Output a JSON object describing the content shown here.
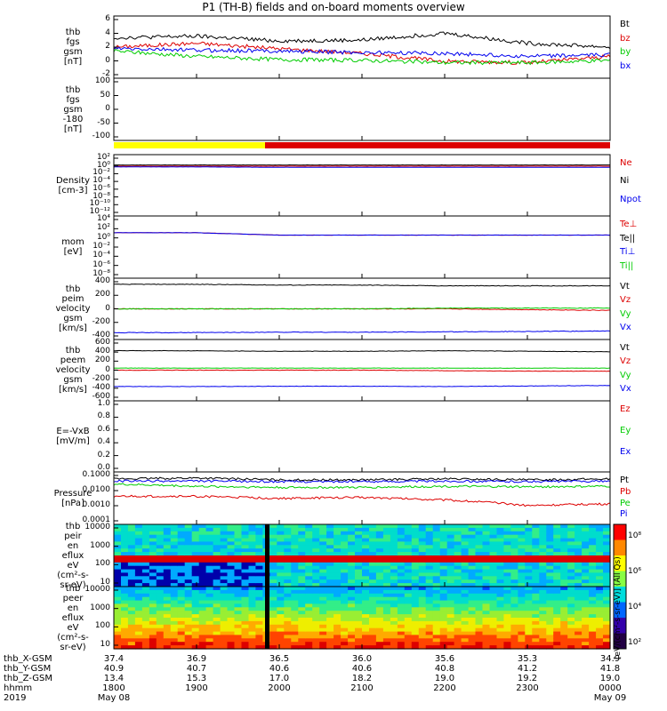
{
  "title": "P1 (TH-B) fields and on-board moments overview",
  "colors": {
    "black": "#000000",
    "red": "#dd0000",
    "green": "#00cc00",
    "blue": "#0000ee",
    "yellow": "#ffff00"
  },
  "panels": [
    {
      "id": "fgs",
      "ylabel": [
        "thb",
        "fgs",
        "gsm",
        "[nT]"
      ],
      "ticks": [
        "6",
        "4",
        "2",
        "0",
        "-2"
      ],
      "legend": [
        {
          "t": "Bt",
          "c": "#000000"
        },
        {
          "t": "bz",
          "c": "#dd0000"
        },
        {
          "t": "by",
          "c": "#00cc00"
        },
        {
          "t": "bx",
          "c": "#0000ee"
        }
      ]
    },
    {
      "id": "fgs_theta",
      "ylabel": [
        "thb",
        "fgs",
        "gsm",
        "-180",
        "[nT]"
      ],
      "ticks": [
        "100",
        "50",
        "0",
        "-50",
        "-100"
      ],
      "legend": []
    },
    {
      "id": "density",
      "ylabel": [
        "Density",
        "[cm-3]"
      ],
      "ticks": [
        "10²",
        "10⁰",
        "10⁻²",
        "10⁻⁴",
        "10⁻⁶",
        "10⁻⁸",
        "10⁻¹⁰",
        "10⁻¹²"
      ],
      "legend": [
        {
          "t": "Ne",
          "c": "#dd0000"
        },
        {
          "t": "Ni",
          "c": "#000000"
        },
        {
          "t": "Npot",
          "c": "#0000ee"
        }
      ]
    },
    {
      "id": "temp",
      "ylabel": [
        "mom",
        "[eV]"
      ],
      "ticks": [
        "10⁴",
        "10²",
        "10⁰",
        "10⁻²",
        "10⁻⁴",
        "10⁻⁶",
        "10⁻⁸"
      ],
      "legend": [
        {
          "t": "Te⊥",
          "c": "#dd0000"
        },
        {
          "t": "Te||",
          "c": "#000000"
        },
        {
          "t": "Ti⊥",
          "c": "#0000ee"
        },
        {
          "t": "Ti||",
          "c": "#00cc00"
        }
      ]
    },
    {
      "id": "vi",
      "ylabel": [
        "thb",
        "peim",
        "velocity",
        "gsm",
        "[km/s]"
      ],
      "ticks": [
        "400",
        "200",
        "0",
        "-200",
        "-400"
      ],
      "legend": [
        {
          "t": "Vt",
          "c": "#000000"
        },
        {
          "t": "Vz",
          "c": "#dd0000"
        },
        {
          "t": "Vy",
          "c": "#00cc00"
        },
        {
          "t": "Vx",
          "c": "#0000ee"
        }
      ]
    },
    {
      "id": "ve",
      "ylabel": [
        "thb",
        "peem",
        "velocity",
        "gsm",
        "[km/s]"
      ],
      "ticks": [
        "600",
        "400",
        "200",
        "0",
        "-200",
        "-400",
        "-600"
      ],
      "legend": [
        {
          "t": "Vt",
          "c": "#000000"
        },
        {
          "t": "Vz",
          "c": "#dd0000"
        },
        {
          "t": "Vy",
          "c": "#00cc00"
        },
        {
          "t": "Vx",
          "c": "#0000ee"
        }
      ]
    },
    {
      "id": "efield",
      "ylabel": [
        "E=-VxB",
        "[mV/m]"
      ],
      "ticks": [
        "1.0",
        "0.8",
        "0.6",
        "0.4",
        "0.2",
        "0.0"
      ],
      "legend": [
        {
          "t": "Ez",
          "c": "#dd0000"
        },
        {
          "t": "Ey",
          "c": "#00cc00"
        },
        {
          "t": "Ex",
          "c": "#0000ee"
        }
      ]
    },
    {
      "id": "pressure",
      "ylabel": [
        "Pressure",
        "[nPa]"
      ],
      "ticks": [
        "0.1000",
        "0.0100",
        "0.0010",
        "0.0001"
      ],
      "legend": [
        {
          "t": "Pt",
          "c": "#000000"
        },
        {
          "t": "Pb",
          "c": "#dd0000"
        },
        {
          "t": "Pe",
          "c": "#00cc00"
        },
        {
          "t": "Pi",
          "c": "#0000ee"
        }
      ]
    },
    {
      "id": "ion_spec",
      "ylabel": [
        "thb",
        "peir",
        "en",
        "eflux",
        "eV",
        "(cm²-s-",
        "sr-eV)"
      ],
      "ticks": [
        "10000",
        "1000",
        "100",
        "10"
      ],
      "legend": []
    },
    {
      "id": "elec_spec",
      "ylabel": [
        "thb",
        "peer",
        "en",
        "eflux",
        "eV",
        "(cm²-s-",
        "sr-eV)"
      ],
      "ticks": [
        "10000",
        "1000",
        "100",
        "10"
      ],
      "legend": []
    }
  ],
  "colorbar": {
    "label": "[eV/(cm²-s-sr-eV)] (All Qs)",
    "ticks": [
      "10⁸",
      "10⁶",
      "10⁴",
      "10²"
    ]
  },
  "footer": {
    "labels": [
      "thb_X-GSM",
      "thb_Y-GSM",
      "thb_Z-GSM",
      "hhmm",
      "2019"
    ],
    "columns": [
      {
        "x": "37.4",
        "y": "40.9",
        "z": "13.4",
        "t": "1800",
        "d": "May 08"
      },
      {
        "x": "36.9",
        "y": "40.7",
        "z": "15.3",
        "t": "1900",
        "d": ""
      },
      {
        "x": "36.5",
        "y": "40.6",
        "z": "17.0",
        "t": "2000",
        "d": ""
      },
      {
        "x": "36.0",
        "y": "40.6",
        "z": "18.2",
        "t": "2100",
        "d": ""
      },
      {
        "x": "35.6",
        "y": "40.8",
        "z": "19.0",
        "t": "2200",
        "d": ""
      },
      {
        "x": "35.3",
        "y": "41.2",
        "z": "19.2",
        "t": "2300",
        "d": ""
      },
      {
        "x": "34.9",
        "y": "41.8",
        "z": "19.0",
        "t": "0000",
        "d": "May 09"
      }
    ]
  },
  "chart_data": [
    {
      "type": "line",
      "name": "fgs",
      "xlabel": "hhmm",
      "x": [
        "1800",
        "1900",
        "2000",
        "2100",
        "2200",
        "2300",
        "0000"
      ],
      "ylim": [
        -2,
        6
      ],
      "series": [
        {
          "name": "Bt",
          "values": [
            3.2,
            3.4,
            2.8,
            2.9,
            3.8,
            2.5,
            2.0
          ]
        },
        {
          "name": "bz",
          "values": [
            2.0,
            2.5,
            1.8,
            1.2,
            0.2,
            0.0,
            0.8
          ]
        },
        {
          "name": "by",
          "values": [
            1.5,
            0.8,
            0.4,
            0.3,
            0.0,
            0.0,
            0.3
          ]
        },
        {
          "name": "bx",
          "values": [
            1.8,
            1.6,
            1.5,
            1.3,
            1.2,
            0.8,
            1.0
          ]
        }
      ]
    },
    {
      "type": "line",
      "name": "fgs_theta",
      "ylim": [
        -120,
        120
      ],
      "series": []
    },
    {
      "type": "line",
      "name": "density",
      "ylim_log10": [
        -13,
        3
      ],
      "series": [
        {
          "name": "Ne",
          "values": [
            0,
            0,
            0,
            0,
            0,
            0,
            0
          ]
        },
        {
          "name": "Ni",
          "values": [
            0.3,
            0.3,
            0.3,
            0.3,
            0.3,
            0.3,
            0.3
          ]
        },
        {
          "name": "Npot",
          "values": [
            -0.2,
            -0.2,
            -0.3,
            -0.3,
            -0.3,
            -0.3,
            -0.3
          ]
        }
      ]
    },
    {
      "type": "line",
      "name": "temp",
      "ylim_log10": [
        -9,
        4
      ],
      "series": [
        {
          "name": "Te⊥",
          "values": [
            0.5,
            0.5,
            0,
            0,
            0,
            0,
            0
          ]
        },
        {
          "name": "Ti⊥",
          "values": [
            0.5,
            0.5,
            0,
            0,
            0,
            0,
            0
          ]
        }
      ]
    },
    {
      "type": "line",
      "name": "vi",
      "ylim": [
        -400,
        400
      ],
      "series": [
        {
          "name": "Vt",
          "values": [
            320,
            320,
            310,
            310,
            300,
            300,
            300
          ]
        },
        {
          "name": "Vz",
          "values": [
            0,
            0,
            0,
            0,
            0,
            -10,
            -20
          ]
        },
        {
          "name": "Vy",
          "values": [
            0,
            0,
            0,
            0,
            10,
            10,
            10
          ]
        },
        {
          "name": "Vx",
          "values": [
            -310,
            -310,
            -305,
            -305,
            -300,
            -295,
            -290
          ]
        }
      ]
    },
    {
      "type": "line",
      "name": "ve",
      "ylim": [
        -600,
        600
      ],
      "series": [
        {
          "name": "Vt",
          "values": [
            380,
            380,
            370,
            370,
            380,
            370,
            360
          ]
        },
        {
          "name": "Vz",
          "values": [
            0,
            0,
            0,
            0,
            -10,
            -20,
            -20
          ]
        },
        {
          "name": "Vy",
          "values": [
            40,
            40,
            40,
            40,
            40,
            40,
            40
          ]
        },
        {
          "name": "Vx",
          "values": [
            -320,
            -320,
            -315,
            -315,
            -320,
            -310,
            -300
          ]
        }
      ]
    },
    {
      "type": "line",
      "name": "efield",
      "ylim": [
        0,
        1
      ],
      "series": []
    },
    {
      "type": "line",
      "name": "pressure",
      "ylim": [
        0.0001,
        0.1
      ],
      "scale": "log",
      "series": [
        {
          "name": "Pt",
          "values": [
            0.04,
            0.045,
            0.035,
            0.035,
            0.04,
            0.035,
            0.04
          ]
        },
        {
          "name": "Pb",
          "values": [
            0.004,
            0.004,
            0.003,
            0.0035,
            0.0025,
            0.0012,
            0.0015
          ]
        },
        {
          "name": "Pe",
          "values": [
            0.02,
            0.015,
            0.013,
            0.013,
            0.015,
            0.014,
            0.015
          ]
        },
        {
          "name": "Pi",
          "values": [
            0.03,
            0.03,
            0.028,
            0.028,
            0.03,
            0.028,
            0.03
          ]
        }
      ]
    },
    {
      "type": "heatmap",
      "name": "ion_spec",
      "ylim": [
        5,
        30000
      ],
      "scale": "log"
    },
    {
      "type": "heatmap",
      "name": "elec_spec",
      "ylim": [
        5,
        30000
      ],
      "scale": "log"
    }
  ]
}
